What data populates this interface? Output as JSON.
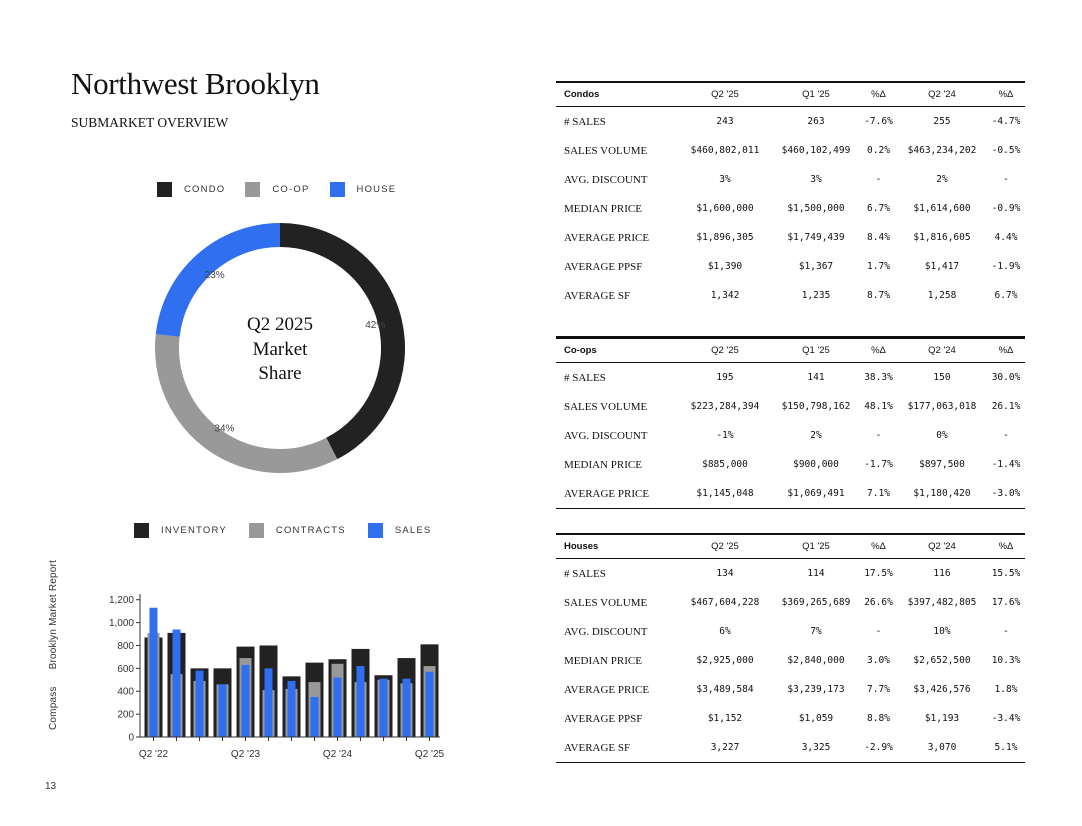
{
  "header": {
    "title": "Northwest Brooklyn",
    "subtitle": "SUBMARKET OVERVIEW"
  },
  "colors": {
    "condo": "#222222",
    "coop": "#999999",
    "house": "#2F6FF0",
    "inventory": "#222222",
    "contracts": "#999999",
    "sales": "#2F6FF0"
  },
  "donut": {
    "legend": [
      "CONDO",
      "CO-OP",
      "HOUSE"
    ],
    "center_lines": [
      "Q2 2025",
      "Market",
      "Share"
    ],
    "chart_data": {
      "type": "pie",
      "categories": [
        "CONDO",
        "CO-OP",
        "HOUSE"
      ],
      "values": [
        42,
        34,
        23
      ],
      "labels": [
        "42%",
        "34%",
        "23%"
      ]
    }
  },
  "bars": {
    "legend": [
      "INVENTORY",
      "CONTRACTS",
      "SALES"
    ],
    "chart_data": {
      "type": "bar",
      "categories": [
        "Q2 '22",
        "Q3 '22",
        "Q4 '22",
        "Q1 '23",
        "Q2 '23",
        "Q3 '23",
        "Q4 '23",
        "Q1 '24",
        "Q2 '24",
        "Q3 '24",
        "Q4 '24",
        "Q1 '25",
        "Q2 '25"
      ],
      "tick_labels": [
        "Q2 '22",
        "Q2 '23",
        "Q2 '24",
        "Q2 '25"
      ],
      "tick_indices": [
        0,
        4,
        8,
        12
      ],
      "yticks": [
        0,
        200,
        400,
        600,
        800,
        1000,
        1200
      ],
      "ytick_labels": [
        "0",
        "200",
        "400",
        "600",
        "800",
        "1,000",
        "1,200"
      ],
      "ylim": [
        0,
        1250
      ],
      "series": [
        {
          "name": "INVENTORY",
          "values": [
            870,
            910,
            600,
            600,
            790,
            800,
            530,
            650,
            680,
            770,
            540,
            690,
            810
          ]
        },
        {
          "name": "CONTRACTS",
          "values": [
            910,
            550,
            490,
            460,
            690,
            410,
            420,
            480,
            640,
            480,
            500,
            470,
            620
          ]
        },
        {
          "name": "SALES",
          "values": [
            1130,
            940,
            580,
            460,
            630,
            600,
            490,
            350,
            520,
            620,
            510,
            510,
            570
          ]
        }
      ]
    }
  },
  "tables": {
    "headers": [
      "Q2 '25",
      "Q1 '25",
      "%Δ",
      "Q2 '24",
      "%Δ"
    ],
    "condos": {
      "name": "Condos",
      "rows": [
        {
          "label": "# SALES",
          "cells": [
            "243",
            "263",
            "-7.6%",
            "255",
            "-4.7%"
          ]
        },
        {
          "label": "SALES VOLUME",
          "cells": [
            "$460,802,011",
            "$460,102,499",
            "0.2%",
            "$463,234,202",
            "-0.5%"
          ]
        },
        {
          "label": "AVG. DISCOUNT",
          "cells": [
            "3%",
            "3%",
            "-",
            "2%",
            "-"
          ]
        },
        {
          "label": "MEDIAN PRICE",
          "cells": [
            "$1,600,000",
            "$1,500,000",
            "6.7%",
            "$1,614,600",
            "-0.9%"
          ]
        },
        {
          "label": "AVERAGE PRICE",
          "cells": [
            "$1,896,305",
            "$1,749,439",
            "8.4%",
            "$1,816,605",
            "4.4%"
          ]
        },
        {
          "label": "AVERAGE PPSF",
          "cells": [
            "$1,390",
            "$1,367",
            "1.7%",
            "$1,417",
            "-1.9%"
          ]
        },
        {
          "label": "AVERAGE SF",
          "cells": [
            "1,342",
            "1,235",
            "8.7%",
            "1,258",
            "6.7%"
          ]
        }
      ]
    },
    "coops": {
      "name": "Co-ops",
      "rows": [
        {
          "label": "# SALES",
          "cells": [
            "195",
            "141",
            "38.3%",
            "150",
            "30.0%"
          ]
        },
        {
          "label": "SALES VOLUME",
          "cells": [
            "$223,284,394",
            "$150,798,162",
            "48.1%",
            "$177,063,018",
            "26.1%"
          ]
        },
        {
          "label": "AVG. DISCOUNT",
          "cells": [
            "-1%",
            "2%",
            "-",
            "0%",
            "-"
          ]
        },
        {
          "label": "MEDIAN PRICE",
          "cells": [
            "$885,000",
            "$900,000",
            "-1.7%",
            "$897,500",
            "-1.4%"
          ]
        },
        {
          "label": "AVERAGE PRICE",
          "cells": [
            "$1,145,048",
            "$1,069,491",
            "7.1%",
            "$1,180,420",
            "-3.0%"
          ]
        }
      ]
    },
    "houses": {
      "name": "Houses",
      "rows": [
        {
          "label": "# SALES",
          "cells": [
            "134",
            "114",
            "17.5%",
            "116",
            "15.5%"
          ]
        },
        {
          "label": "SALES VOLUME",
          "cells": [
            "$467,604,228",
            "$369,265,689",
            "26.6%",
            "$397,482,805",
            "17.6%"
          ]
        },
        {
          "label": "AVG. DISCOUNT",
          "cells": [
            "6%",
            "7%",
            "-",
            "10%",
            "-"
          ]
        },
        {
          "label": "MEDIAN PRICE",
          "cells": [
            "$2,925,000",
            "$2,840,000",
            "3.0%",
            "$2,652,500",
            "10.3%"
          ]
        },
        {
          "label": "AVERAGE PRICE",
          "cells": [
            "$3,489,584",
            "$3,239,173",
            "7.7%",
            "$3,426,576",
            "1.8%"
          ]
        },
        {
          "label": "AVERAGE PPSF",
          "cells": [
            "$1,152",
            "$1,059",
            "8.8%",
            "$1,193",
            "-3.4%"
          ]
        },
        {
          "label": "AVERAGE SF",
          "cells": [
            "3,227",
            "3,325",
            "-2.9%",
            "3,070",
            "5.1%"
          ]
        }
      ]
    }
  },
  "footer": {
    "brand": "Compass",
    "report": "Brooklyn Market Report",
    "page": "13"
  }
}
